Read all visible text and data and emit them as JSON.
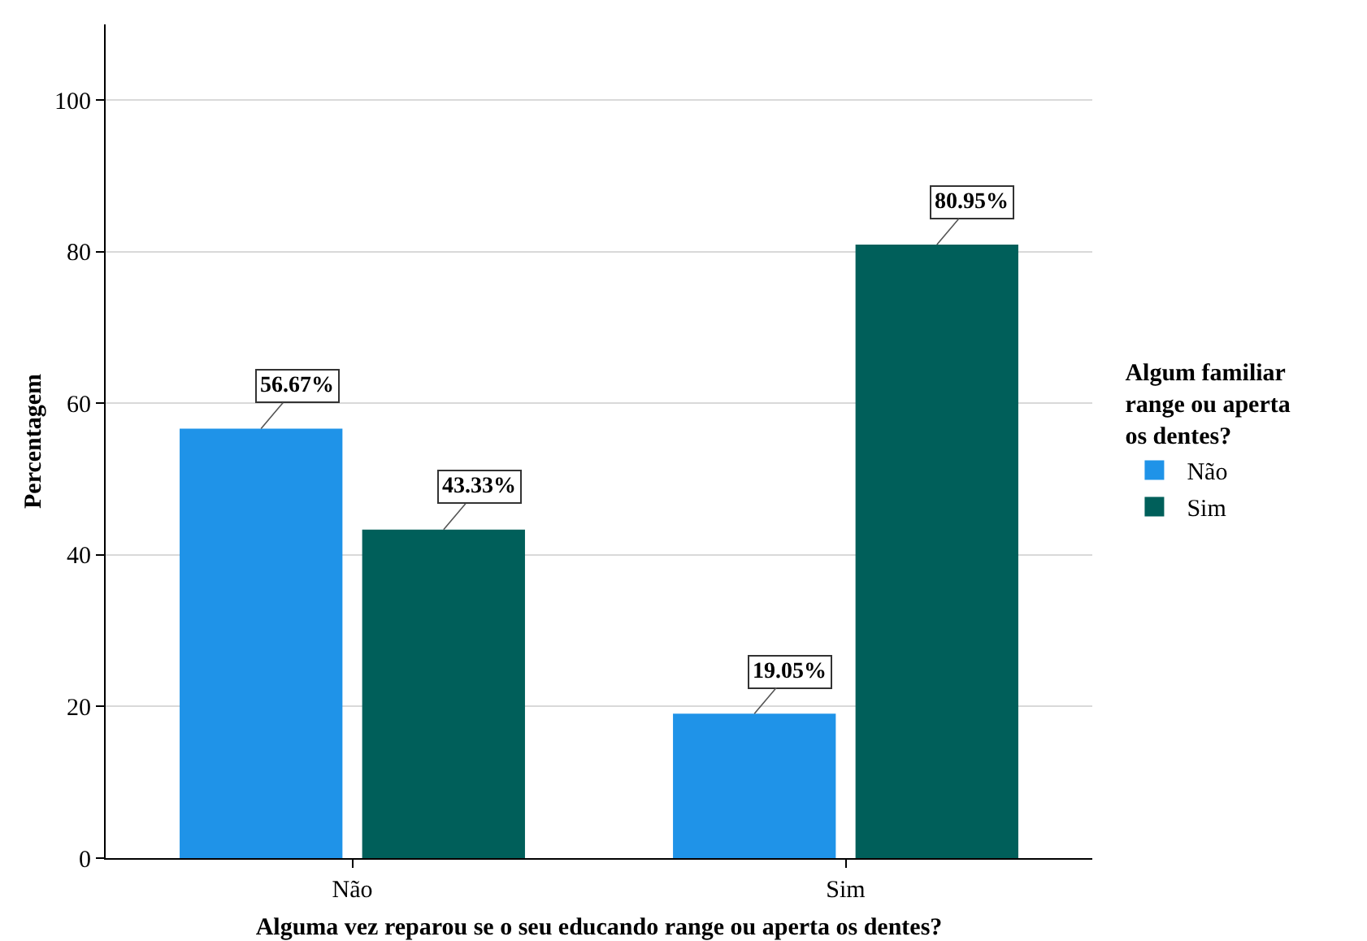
{
  "chart_data": {
    "type": "bar",
    "xlabel": "Alguma vez reparou se o seu educando range ou aperta os dentes?",
    "ylabel": "Percentagem",
    "legend_title": "Algum familiar range ou aperta os dentes?",
    "categories": [
      "Não",
      "Sim"
    ],
    "series": [
      {
        "name": "Não",
        "color": "#1f93e8",
        "values": [
          56.67,
          19.05
        ],
        "value_labels": [
          "56.67%",
          "19.05%"
        ]
      },
      {
        "name": "Sim",
        "color": "#005f5a",
        "values": [
          43.33,
          80.95
        ],
        "value_labels": [
          "43.33%",
          "80.95%"
        ]
      }
    ],
    "ylim": [
      0,
      110
    ],
    "yticks": [
      0,
      20,
      40,
      60,
      80,
      100
    ],
    "grid": "y",
    "legend": "right"
  }
}
